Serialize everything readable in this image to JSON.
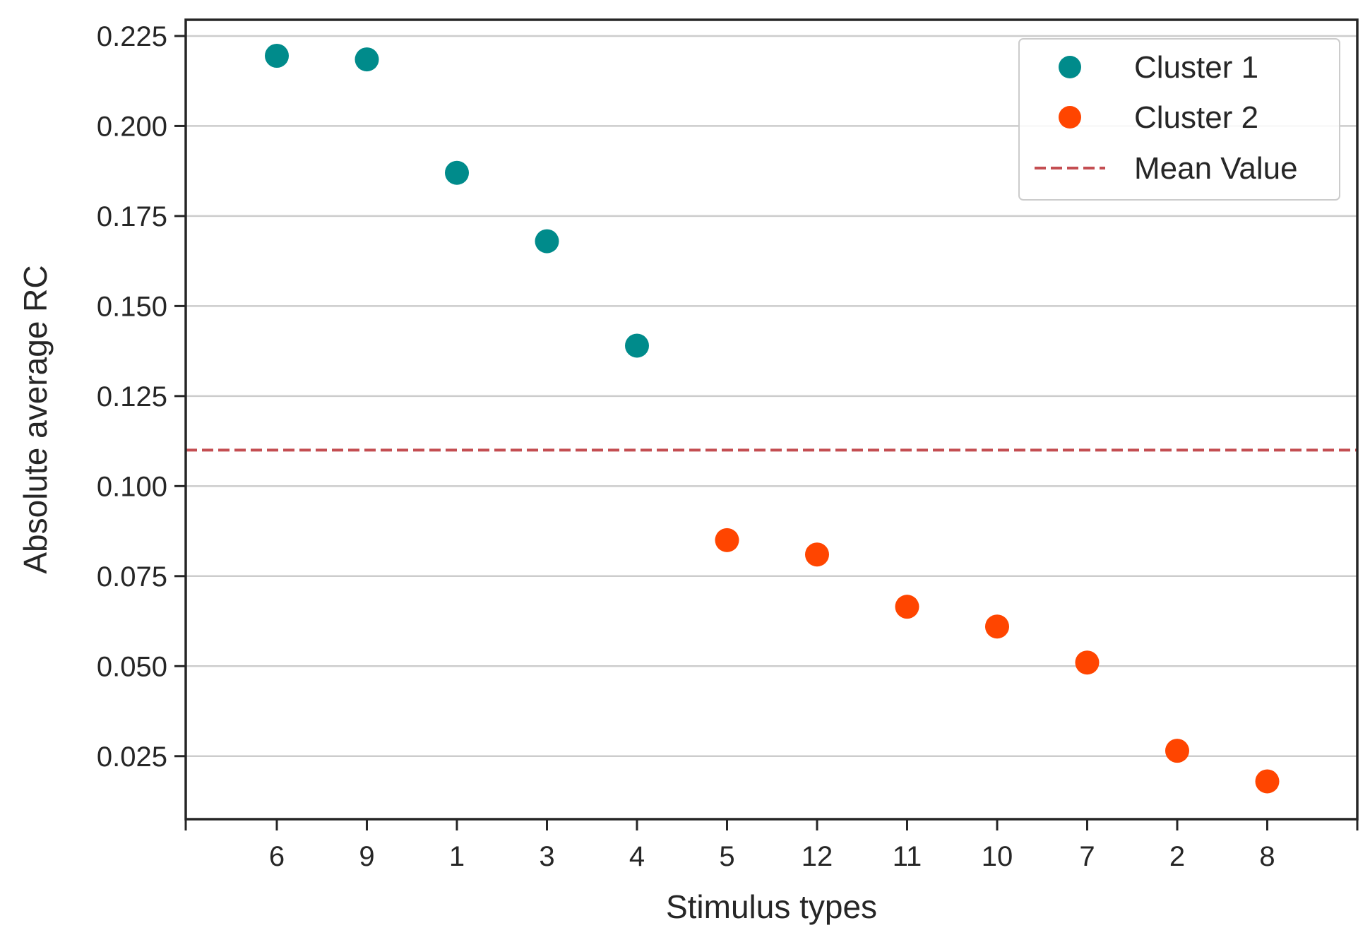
{
  "chart_data": {
    "type": "scatter",
    "title": "",
    "xlabel": "Stimulus types",
    "ylabel": "Absolute average RC",
    "categories": [
      "6",
      "9",
      "1",
      "3",
      "4",
      "5",
      "12",
      "11",
      "10",
      "7",
      "2",
      "8"
    ],
    "ylim": [
      0.0075,
      0.2295
    ],
    "y_ticks": [
      0.025,
      0.05,
      0.075,
      0.1,
      0.125,
      0.15,
      0.175,
      0.2,
      0.225
    ],
    "y_tick_labels": [
      "0.025",
      "0.050",
      "0.075",
      "0.100",
      "0.125",
      "0.150",
      "0.175",
      "0.200",
      "0.225"
    ],
    "grid": "horizontal",
    "legend_position": "top-right",
    "series": [
      {
        "name": "Cluster 1",
        "color": "#008b8b",
        "categories": [
          "6",
          "9",
          "1",
          "3",
          "4"
        ],
        "values": [
          0.2195,
          0.2185,
          0.187,
          0.168,
          0.139
        ]
      },
      {
        "name": "Cluster 2",
        "color": "#ff4500",
        "categories": [
          "5",
          "12",
          "11",
          "10",
          "7",
          "2",
          "8"
        ],
        "values": [
          0.085,
          0.081,
          0.0665,
          0.061,
          0.051,
          0.0265,
          0.018
        ]
      }
    ],
    "reference_line": {
      "name": "Mean Value",
      "value": 0.11,
      "color": "#c44e52",
      "style": "dashed"
    }
  }
}
